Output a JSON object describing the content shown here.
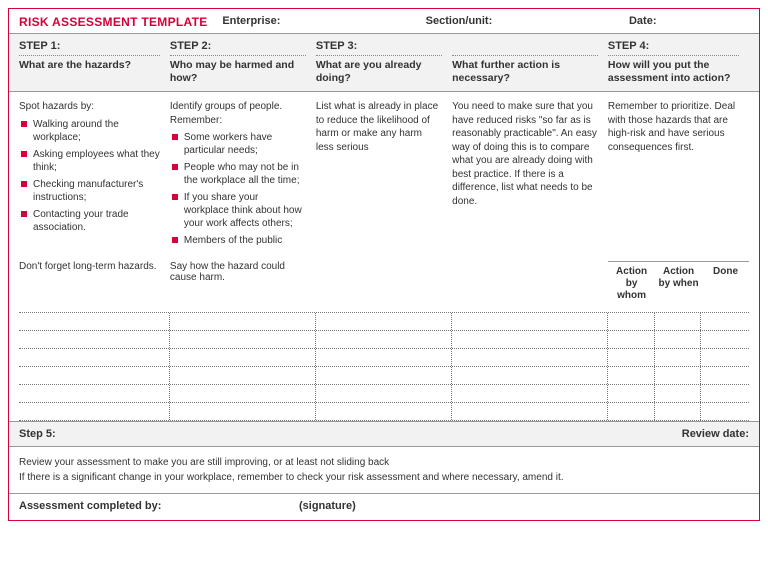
{
  "header": {
    "title": "RISK ASSESSMENT TEMPLATE",
    "enterprise_label": "Enterprise:",
    "section_label": "Section/unit:",
    "date_label": "Date:"
  },
  "steps": {
    "s1": {
      "num": "STEP 1:",
      "q": "What are the hazards?"
    },
    "s2": {
      "num": "STEP 2:",
      "q": "Who may be harmed and how?"
    },
    "s3": {
      "num": "STEP 3:",
      "q_a": "What are you already doing?",
      "q_b": "What further action is necessary?"
    },
    "s4": {
      "num": "STEP 4:",
      "q": "How will you put the assessment into action?"
    }
  },
  "body": {
    "c1_intro": "Spot hazards by:",
    "c1_items": {
      "i1": "Walking around the workplace;",
      "i2": "Asking employees what they think;",
      "i3": "Checking manufacturer's instructions;",
      "i4": "Contacting your trade association."
    },
    "c1_note": "Don't forget long-term hazards.",
    "c2_intro": "Identify groups of people. Remember:",
    "c2_items": {
      "i1": "Some workers have particular needs;",
      "i2": "People who may not be in the workplace all the time;",
      "i3": "If you share your workplace think about how your work affects others;",
      "i4": "Members of the public"
    },
    "c2_note": "Say how the hazard could cause harm.",
    "c3_text": "List what is already in place to reduce the likelihood of harm or make any harm less serious",
    "c4_text": "You need to make sure that you have reduced risks \"so far as is reasonably practicable\". An easy way of doing this is to compare what you are already doing with best practice. If there is a difference, list what needs to be done.",
    "c5_text": "Remember to prioritize. Deal with those hazards that are high-risk and have serious consequences first."
  },
  "action_cols": {
    "a1": "Action by whom",
    "a2": "Action by when",
    "a3": "Done"
  },
  "step5": {
    "label": "Step 5:",
    "review_label": "Review date:",
    "line1": "Review your assessment to make you are still improving, or at least not sliding back",
    "line2": "If there is a significant change in your workplace, remember to check your risk assessment and where necessary, amend it."
  },
  "footer": {
    "completed_by": "Assessment completed by:",
    "signature": "(signature)"
  },
  "style": {
    "accent_color": "#d6003a",
    "bg_gray": "#f2f2f2",
    "border_gray": "#999999",
    "dotted_gray": "#777777",
    "text_color": "#333333",
    "bullet_shape": "square"
  }
}
